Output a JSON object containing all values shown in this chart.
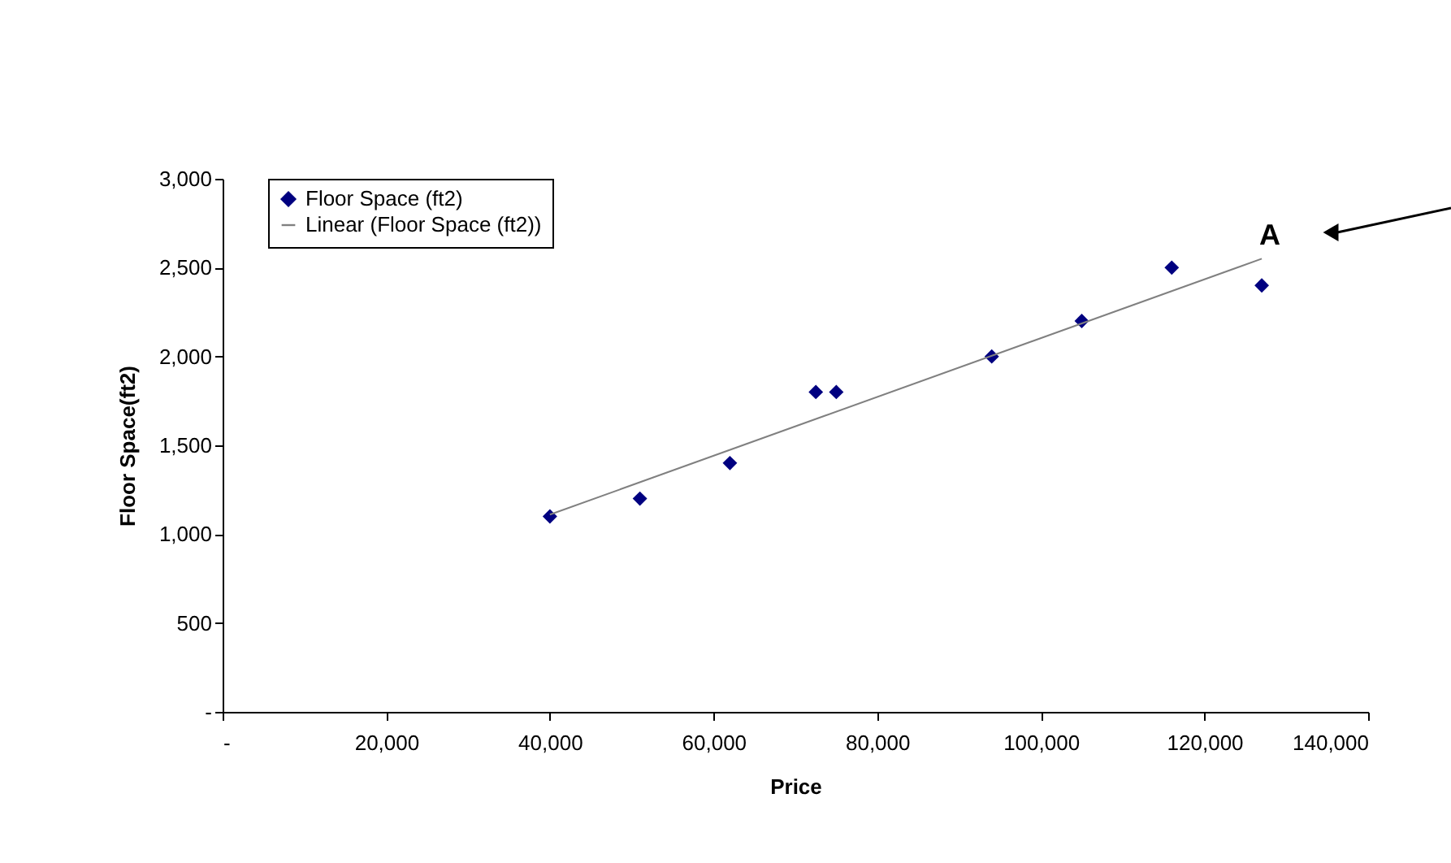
{
  "chart_data": {
    "type": "scatter",
    "xlabel": "Price",
    "ylabel": "Floor Space(ft2)",
    "series": [
      {
        "name": "Floor Space (ft2)",
        "color": "#000080",
        "marker": "diamond",
        "x": [
          40000,
          51000,
          62000,
          72500,
          75000,
          94000,
          105000,
          116000,
          127000
        ],
        "values": [
          1100,
          1200,
          1400,
          1800,
          1800,
          2000,
          2200,
          2500,
          2400
        ]
      },
      {
        "name": "Linear (Floor Space (ft2))",
        "type": "line",
        "color": "#808080",
        "marker": "none",
        "line_style": "solid",
        "x": [
          40000,
          127000
        ],
        "values": [
          1110,
          2550
        ]
      }
    ],
    "xlim": [
      0,
      140000
    ],
    "ylim": [
      0,
      3000
    ],
    "xticks": [
      {
        "value": 0,
        "label": "-"
      },
      {
        "value": 20000,
        "label": "20,000"
      },
      {
        "value": 40000,
        "label": "40,000"
      },
      {
        "value": 60000,
        "label": "60,000"
      },
      {
        "value": 80000,
        "label": "80,000"
      },
      {
        "value": 100000,
        "label": "100,000"
      },
      {
        "value": 120000,
        "label": "120,000"
      },
      {
        "value": 140000,
        "label": "140,000"
      }
    ],
    "yticks": [
      {
        "value": 0,
        "label": "-"
      },
      500,
      {
        "value": 1000,
        "label": "1,000"
      },
      {
        "value": 1500,
        "label": "1,500"
      },
      {
        "value": 2000,
        "label": "2,000"
      },
      {
        "value": 2500,
        "label": "2,500"
      },
      {
        "value": 3000,
        "label": "3,000"
      }
    ],
    "annotations": [
      {
        "text": "A",
        "x": 127000,
        "y": 2400
      }
    ],
    "grid": false,
    "legend": "top left"
  }
}
